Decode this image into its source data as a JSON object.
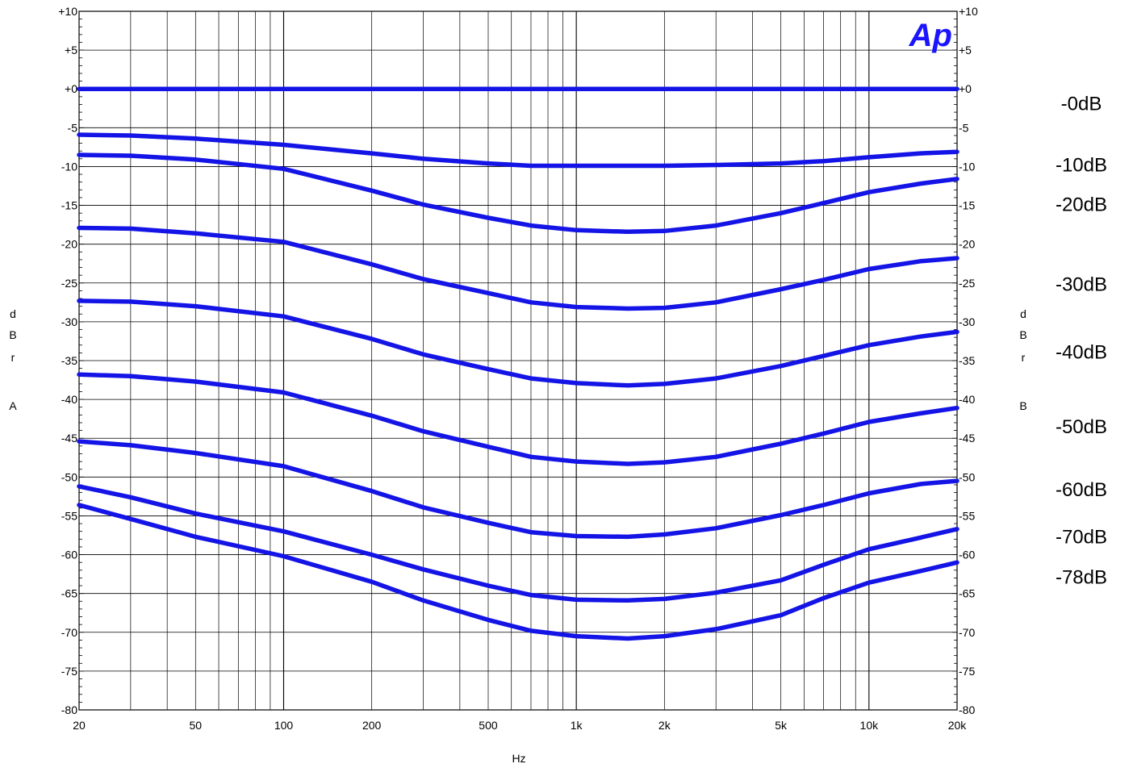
{
  "chart_data": {
    "type": "line",
    "xlabel": "Hz",
    "ylabel_left": [
      "d",
      "B",
      "r",
      "",
      "A"
    ],
    "ylabel_right": [
      "d",
      "B",
      "r",
      "",
      "B"
    ],
    "xscale": "log",
    "xlim": [
      20,
      20000
    ],
    "ylim": [
      -80,
      10
    ],
    "grid": true,
    "x_ticks": [
      {
        "value": 20,
        "label": "20"
      },
      {
        "value": 50,
        "label": "50"
      },
      {
        "value": 100,
        "label": "100"
      },
      {
        "value": 200,
        "label": "200"
      },
      {
        "value": 500,
        "label": "500"
      },
      {
        "value": 1000,
        "label": "1k"
      },
      {
        "value": 2000,
        "label": "2k"
      },
      {
        "value": 5000,
        "label": "5k"
      },
      {
        "value": 10000,
        "label": "10k"
      },
      {
        "value": 20000,
        "label": "20k"
      }
    ],
    "y_ticks": [
      {
        "value": 10,
        "label": "+10"
      },
      {
        "value": 5,
        "label": "+5"
      },
      {
        "value": 0,
        "label": "+0"
      },
      {
        "value": -5,
        "label": "-5"
      },
      {
        "value": -10,
        "label": "-10"
      },
      {
        "value": -15,
        "label": "-15"
      },
      {
        "value": -20,
        "label": "-20"
      },
      {
        "value": -25,
        "label": "-25"
      },
      {
        "value": -30,
        "label": "-30"
      },
      {
        "value": -35,
        "label": "-35"
      },
      {
        "value": -40,
        "label": "-40"
      },
      {
        "value": -45,
        "label": "-45"
      },
      {
        "value": -50,
        "label": "-50"
      },
      {
        "value": -55,
        "label": "-55"
      },
      {
        "value": -60,
        "label": "-60"
      },
      {
        "value": -65,
        "label": "-65"
      },
      {
        "value": -70,
        "label": "-70"
      },
      {
        "value": -75,
        "label": "-75"
      },
      {
        "value": -80,
        "label": "-80"
      }
    ],
    "x": [
      20,
      30,
      50,
      100,
      200,
      300,
      500,
      700,
      1000,
      1500,
      2000,
      3000,
      5000,
      7000,
      10000,
      15000,
      20000
    ],
    "series": [
      {
        "name": "-0dB",
        "label_value": -1.8,
        "values": [
          0,
          0,
          0,
          0,
          0,
          0,
          0,
          0,
          0,
          0,
          0,
          0,
          0,
          0,
          0,
          0,
          0
        ]
      },
      {
        "name": "-10dB",
        "label_value": -9.7,
        "values": [
          -5.9,
          -6.0,
          -6.4,
          -7.2,
          -8.3,
          -9.0,
          -9.6,
          -9.9,
          -9.9,
          -9.9,
          -9.9,
          -9.8,
          -9.6,
          -9.3,
          -8.8,
          -8.3,
          -8.1
        ]
      },
      {
        "name": "-20dB",
        "label_value": -14.8,
        "values": [
          -8.5,
          -8.6,
          -9.1,
          -10.3,
          -13.1,
          -14.9,
          -16.6,
          -17.6,
          -18.2,
          -18.4,
          -18.3,
          -17.6,
          -16.0,
          -14.7,
          -13.3,
          -12.2,
          -11.6
        ]
      },
      {
        "name": "-30dB",
        "label_value": -25.1,
        "values": [
          -17.9,
          -18.0,
          -18.6,
          -19.7,
          -22.6,
          -24.5,
          -26.3,
          -27.5,
          -28.1,
          -28.3,
          -28.2,
          -27.5,
          -25.8,
          -24.6,
          -23.2,
          -22.2,
          -21.8
        ]
      },
      {
        "name": "-40dB",
        "label_value": -33.8,
        "values": [
          -27.3,
          -27.4,
          -28.0,
          -29.3,
          -32.2,
          -34.2,
          -36.1,
          -37.3,
          -37.9,
          -38.2,
          -38.0,
          -37.3,
          -35.7,
          -34.4,
          -33.0,
          -31.9,
          -31.3
        ]
      },
      {
        "name": "-50dB",
        "label_value": -43.4,
        "values": [
          -36.8,
          -37.0,
          -37.7,
          -39.1,
          -42.1,
          -44.1,
          -46.1,
          -47.4,
          -48.0,
          -48.3,
          -48.1,
          -47.4,
          -45.7,
          -44.4,
          -42.9,
          -41.8,
          -41.1
        ]
      },
      {
        "name": "-60dB",
        "label_value": -51.5,
        "values": [
          -45.4,
          -45.9,
          -46.9,
          -48.6,
          -51.8,
          -53.9,
          -55.9,
          -57.1,
          -57.6,
          -57.7,
          -57.4,
          -56.6,
          -54.9,
          -53.6,
          -52.1,
          -50.9,
          -50.5
        ]
      },
      {
        "name": "-70dB",
        "label_value": -57.6,
        "values": [
          -51.2,
          -52.6,
          -54.7,
          -57.0,
          -60.0,
          -61.9,
          -64.0,
          -65.2,
          -65.8,
          -65.9,
          -65.7,
          -64.9,
          -63.3,
          -61.3,
          -59.3,
          -57.8,
          -56.7
        ]
      },
      {
        "name": "-78dB",
        "label_value": -62.8,
        "values": [
          -53.6,
          -55.4,
          -57.7,
          -60.2,
          -63.5,
          -65.9,
          -68.4,
          -69.8,
          -70.5,
          -70.8,
          -70.5,
          -69.6,
          -67.8,
          -65.6,
          -63.6,
          -62.1,
          -61.0
        ]
      }
    ],
    "line_color": "#1414e6",
    "logo": {
      "text": "Ap",
      "color": "#1a14ff"
    }
  }
}
